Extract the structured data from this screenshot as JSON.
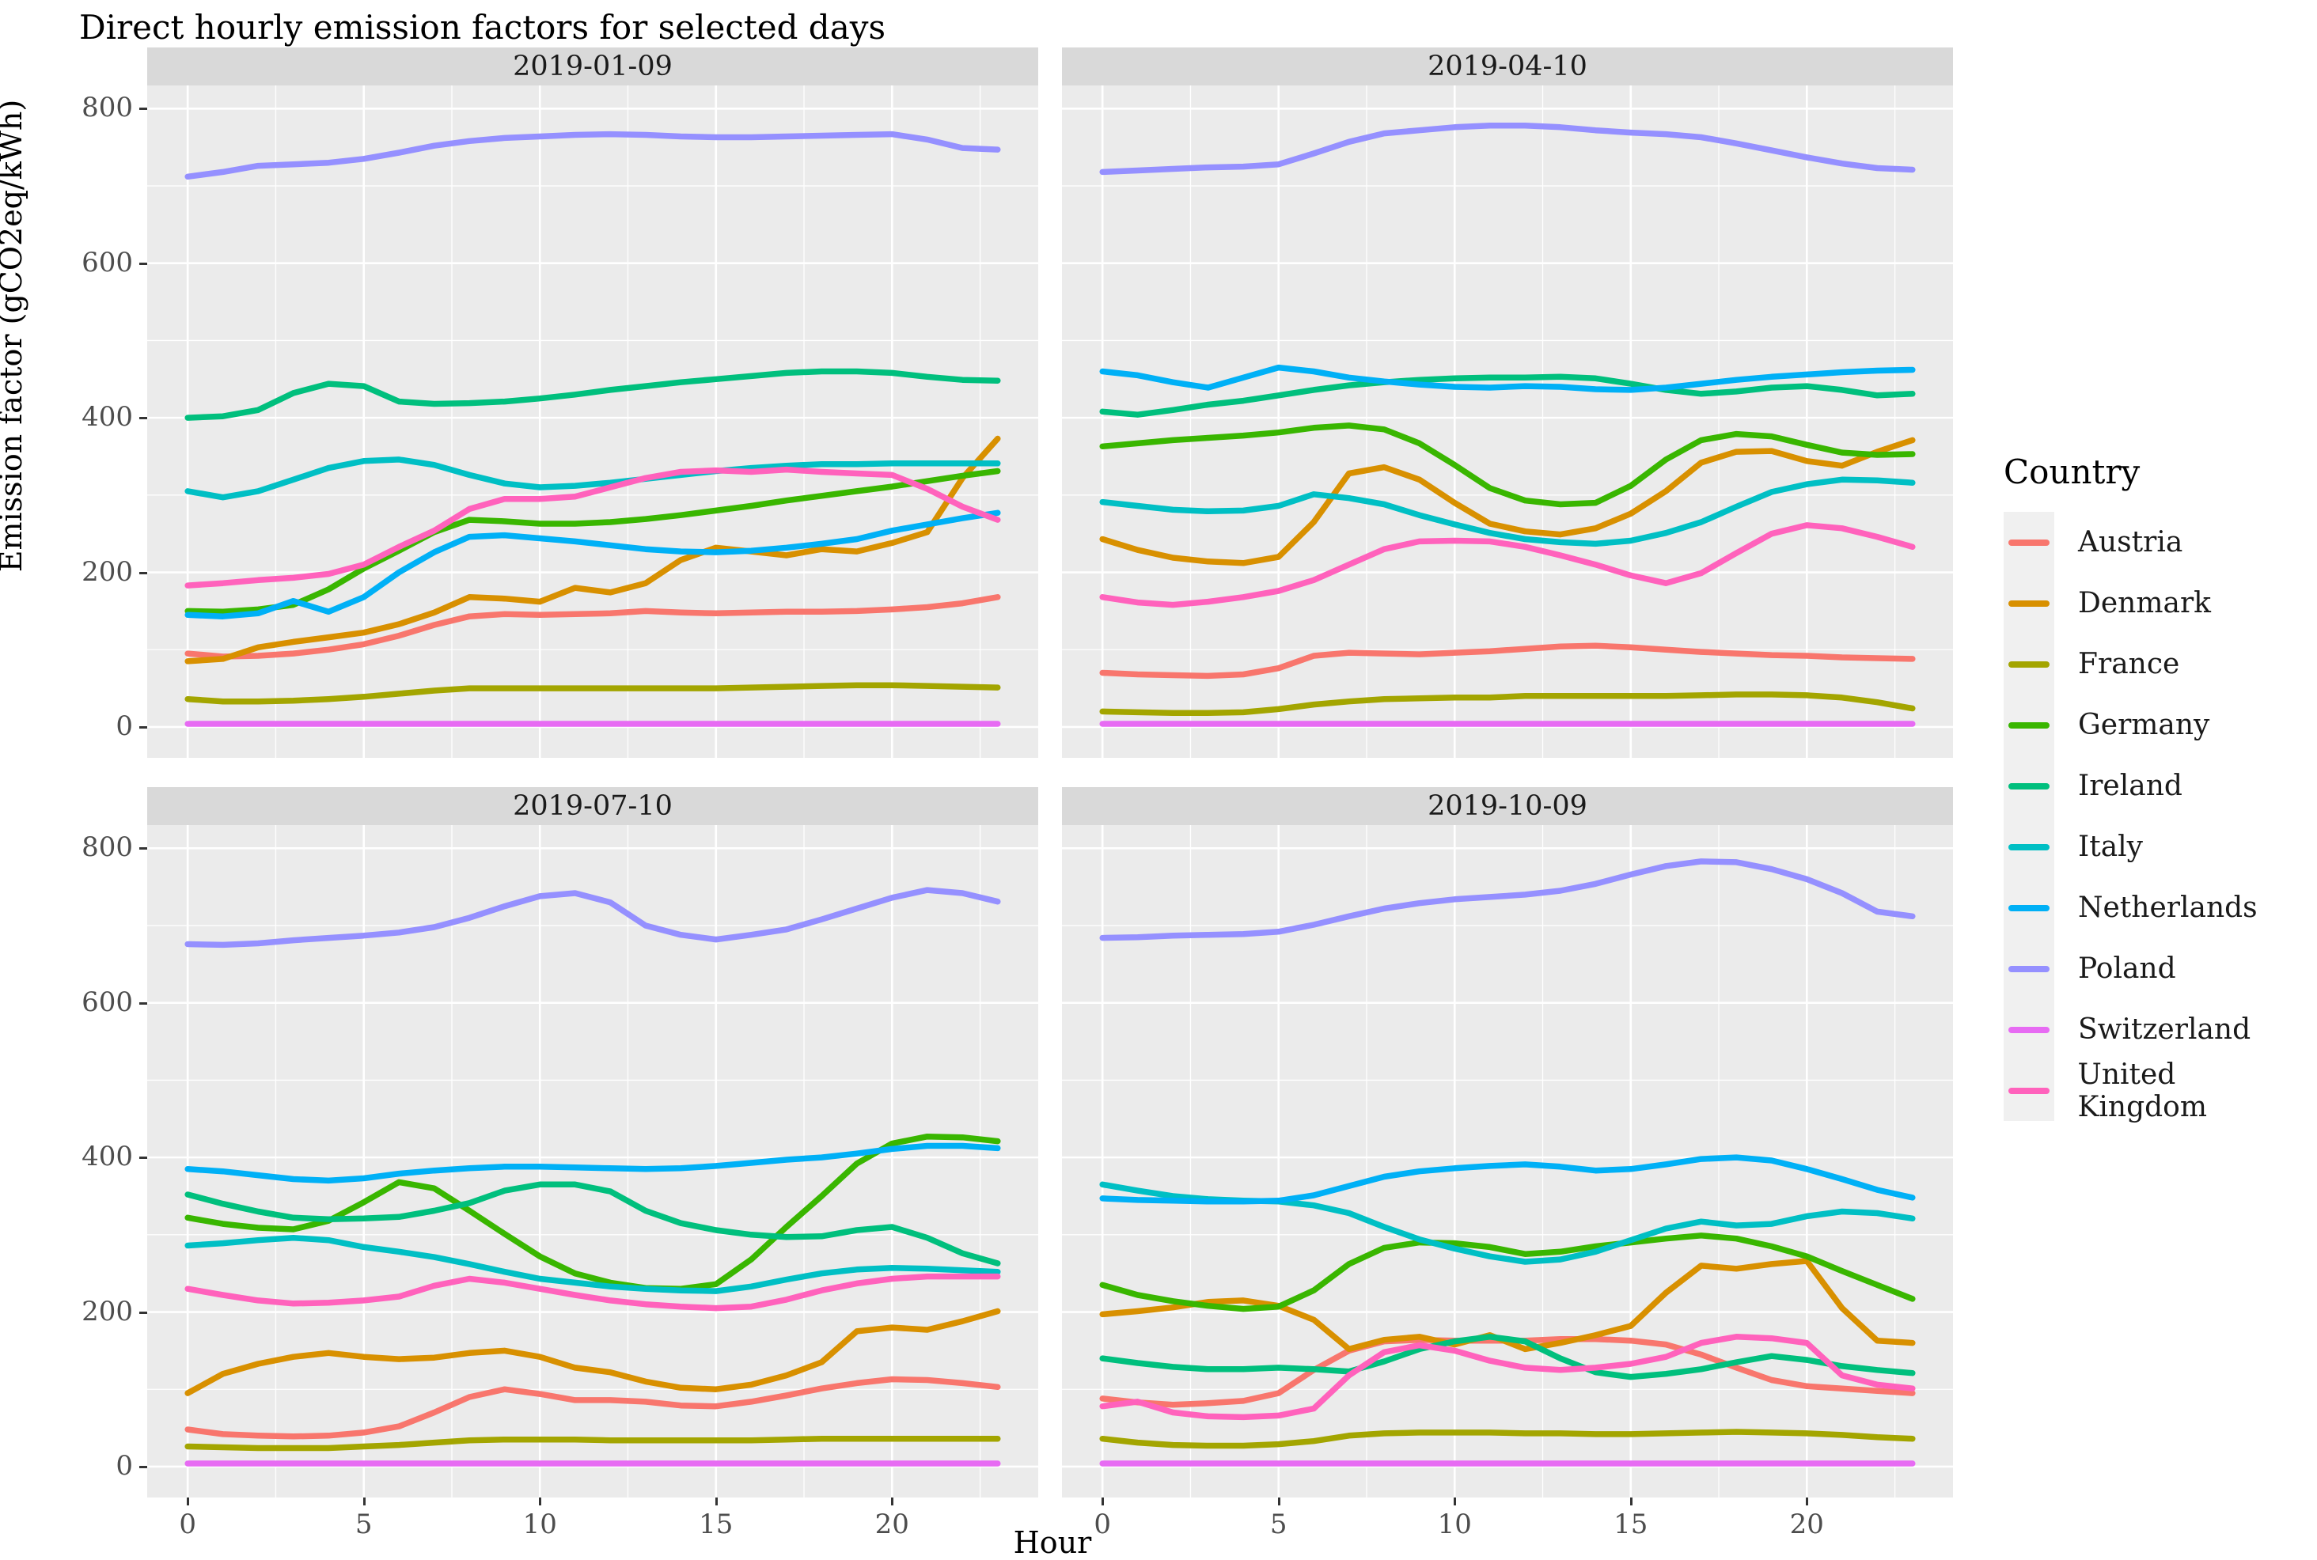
{
  "chart_data": {
    "type": "line",
    "title": "Direct hourly emission factors for selected days",
    "xlabel": "Hour",
    "ylabel": "Emission factor (gCO2eq/kWh)",
    "legend_title": "Country",
    "x_ticks": [
      0,
      5,
      10,
      15,
      20
    ],
    "y_ticks": [
      0,
      200,
      400,
      600,
      800
    ],
    "x_minor": [
      2.5,
      7.5,
      12.5,
      17.5,
      22.5
    ],
    "y_minor": [
      100,
      300,
      500,
      700
    ],
    "xlim": [
      -1.15,
      24.15
    ],
    "ylim": [
      -40,
      830
    ],
    "grid": "on",
    "legend_position": "right",
    "colors": {
      "panel_bg": "#EBEBEB",
      "strip_bg": "#D9D9D9",
      "grid": "#FFFFFF",
      "tick_text": "#4D4D4D"
    },
    "hours": [
      0,
      1,
      2,
      3,
      4,
      5,
      6,
      7,
      8,
      9,
      10,
      11,
      12,
      13,
      14,
      15,
      16,
      17,
      18,
      19,
      20,
      21,
      22,
      23
    ],
    "countries": [
      {
        "name": "Austria",
        "color": "#F8766D"
      },
      {
        "name": "Denmark",
        "color": "#D89000"
      },
      {
        "name": "France",
        "color": "#A3A500"
      },
      {
        "name": "Germany",
        "color": "#39B600"
      },
      {
        "name": "Ireland",
        "color": "#00BF7D"
      },
      {
        "name": "Italy",
        "color": "#00BFC4"
      },
      {
        "name": "Netherlands",
        "color": "#00B0F6"
      },
      {
        "name": "Poland",
        "color": "#9590FF"
      },
      {
        "name": "Switzerland",
        "color": "#E76BF3"
      },
      {
        "name": "United Kingdom",
        "color": "#FF62BC"
      }
    ],
    "facets": [
      {
        "label": "2019-01-09",
        "series": {
          "Austria": [
            95,
            91,
            92,
            95,
            100,
            107,
            118,
            132,
            143,
            146,
            145,
            146,
            147,
            150,
            148,
            147,
            148,
            149,
            149,
            150,
            152,
            155,
            160,
            168
          ],
          "Denmark": [
            85,
            88,
            103,
            110,
            116,
            122,
            133,
            148,
            168,
            166,
            162,
            180,
            174,
            186,
            216,
            232,
            227,
            222,
            230,
            227,
            238,
            252,
            322,
            373
          ],
          "France": [
            36,
            33,
            33,
            34,
            36,
            39,
            43,
            47,
            50,
            50,
            50,
            50,
            50,
            50,
            50,
            50,
            51,
            52,
            53,
            54,
            54,
            53,
            52,
            51
          ],
          "Germany": [
            150,
            149,
            152,
            158,
            178,
            205,
            228,
            252,
            268,
            266,
            263,
            263,
            265,
            269,
            274,
            280,
            286,
            293,
            299,
            305,
            311,
            318,
            325,
            331
          ],
          "Ireland": [
            400,
            402,
            410,
            432,
            444,
            441,
            421,
            418,
            419,
            421,
            425,
            430,
            436,
            441,
            446,
            450,
            454,
            458,
            460,
            460,
            458,
            453,
            449,
            448
          ],
          "Italy": [
            305,
            297,
            305,
            320,
            335,
            344,
            346,
            339,
            326,
            315,
            310,
            312,
            316,
            321,
            326,
            331,
            335,
            338,
            340,
            340,
            341,
            341,
            341,
            341
          ],
          "Netherlands": [
            145,
            143,
            147,
            163,
            149,
            168,
            200,
            226,
            246,
            248,
            244,
            240,
            235,
            230,
            227,
            226,
            228,
            232,
            237,
            243,
            254,
            262,
            270,
            277
          ],
          "Poland": [
            712,
            718,
            726,
            728,
            730,
            735,
            743,
            752,
            758,
            762,
            764,
            766,
            767,
            766,
            764,
            763,
            763,
            764,
            765,
            766,
            767,
            760,
            749,
            747
          ],
          "Switzerland": [
            4,
            4,
            4,
            4,
            4,
            4,
            4,
            4,
            4,
            4,
            4,
            4,
            4,
            4,
            4,
            4,
            4,
            4,
            4,
            4,
            4,
            4,
            4,
            4
          ],
          "United Kingdom": [
            183,
            186,
            190,
            193,
            198,
            210,
            233,
            254,
            282,
            295,
            295,
            298,
            310,
            322,
            330,
            332,
            330,
            333,
            330,
            328,
            326,
            308,
            285,
            268
          ]
        }
      },
      {
        "label": "2019-04-10",
        "series": {
          "Austria": [
            70,
            68,
            67,
            66,
            68,
            76,
            92,
            96,
            95,
            94,
            96,
            98,
            101,
            104,
            105,
            103,
            100,
            97,
            95,
            93,
            92,
            90,
            89,
            88
          ],
          "Denmark": [
            243,
            229,
            219,
            214,
            212,
            220,
            265,
            328,
            336,
            320,
            290,
            263,
            253,
            249,
            257,
            276,
            305,
            342,
            356,
            357,
            344,
            338,
            356,
            371
          ],
          "France": [
            20,
            19,
            18,
            18,
            19,
            23,
            29,
            33,
            36,
            37,
            38,
            38,
            40,
            40,
            40,
            40,
            40,
            41,
            42,
            42,
            41,
            38,
            32,
            24
          ],
          "Germany": [
            363,
            367,
            371,
            374,
            377,
            381,
            387,
            390,
            385,
            367,
            339,
            309,
            293,
            288,
            290,
            312,
            346,
            371,
            379,
            376,
            365,
            355,
            352,
            353
          ],
          "Ireland": [
            408,
            404,
            410,
            417,
            422,
            429,
            436,
            442,
            446,
            449,
            451,
            452,
            452,
            453,
            451,
            444,
            436,
            431,
            434,
            439,
            441,
            436,
            429,
            431
          ],
          "Italy": [
            291,
            286,
            281,
            279,
            280,
            286,
            301,
            296,
            288,
            274,
            262,
            251,
            243,
            239,
            237,
            241,
            251,
            265,
            285,
            304,
            314,
            320,
            319,
            316
          ],
          "Netherlands": [
            460,
            455,
            446,
            439,
            452,
            465,
            460,
            452,
            447,
            443,
            440,
            439,
            441,
            440,
            437,
            436,
            439,
            444,
            449,
            453,
            456,
            459,
            461,
            462
          ],
          "Poland": [
            718,
            720,
            722,
            724,
            725,
            728,
            742,
            757,
            768,
            772,
            776,
            778,
            778,
            776,
            772,
            769,
            767,
            763,
            755,
            746,
            737,
            729,
            723,
            721
          ],
          "Switzerland": [
            4,
            4,
            4,
            4,
            4,
            4,
            4,
            4,
            4,
            4,
            4,
            4,
            4,
            4,
            4,
            4,
            4,
            4,
            4,
            4,
            4,
            4,
            4,
            4
          ],
          "United Kingdom": [
            168,
            161,
            158,
            162,
            168,
            176,
            190,
            210,
            230,
            240,
            241,
            240,
            233,
            222,
            210,
            196,
            186,
            199,
            225,
            250,
            261,
            257,
            246,
            233
          ]
        }
      },
      {
        "label": "2019-07-10",
        "series": {
          "Austria": [
            48,
            42,
            40,
            39,
            40,
            44,
            52,
            70,
            90,
            100,
            94,
            86,
            86,
            84,
            79,
            78,
            84,
            92,
            101,
            108,
            113,
            112,
            108,
            103
          ],
          "Denmark": [
            95,
            120,
            133,
            142,
            147,
            142,
            139,
            141,
            147,
            150,
            142,
            128,
            122,
            110,
            102,
            100,
            106,
            118,
            135,
            175,
            180,
            177,
            188,
            201
          ],
          "France": [
            26,
            25,
            24,
            24,
            24,
            26,
            28,
            31,
            34,
            35,
            35,
            35,
            34,
            34,
            34,
            34,
            34,
            35,
            36,
            36,
            36,
            36,
            36,
            36
          ],
          "Germany": [
            322,
            314,
            309,
            307,
            318,
            342,
            368,
            360,
            331,
            301,
            272,
            250,
            238,
            231,
            230,
            236,
            268,
            310,
            350,
            392,
            418,
            427,
            426,
            421
          ],
          "Ireland": [
            352,
            340,
            330,
            322,
            320,
            321,
            323,
            331,
            341,
            357,
            365,
            365,
            356,
            331,
            315,
            306,
            300,
            297,
            298,
            306,
            310,
            296,
            276,
            263
          ],
          "Italy": [
            286,
            289,
            293,
            296,
            293,
            284,
            278,
            271,
            262,
            252,
            243,
            238,
            233,
            230,
            228,
            227,
            233,
            242,
            250,
            255,
            257,
            256,
            254,
            252
          ],
          "Netherlands": [
            385,
            382,
            377,
            372,
            370,
            373,
            379,
            383,
            386,
            388,
            388,
            387,
            386,
            385,
            386,
            389,
            393,
            397,
            400,
            405,
            411,
            415,
            415,
            412
          ],
          "Poland": [
            676,
            675,
            677,
            681,
            684,
            687,
            691,
            698,
            710,
            725,
            738,
            742,
            730,
            700,
            688,
            682,
            688,
            695,
            708,
            722,
            736,
            746,
            742,
            731
          ],
          "Switzerland": [
            4,
            4,
            4,
            4,
            4,
            4,
            4,
            4,
            4,
            4,
            4,
            4,
            4,
            4,
            4,
            4,
            4,
            4,
            4,
            4,
            4,
            4,
            4,
            4
          ],
          "United Kingdom": [
            230,
            222,
            215,
            211,
            212,
            215,
            220,
            234,
            243,
            238,
            230,
            222,
            215,
            210,
            207,
            205,
            207,
            216,
            228,
            237,
            243,
            246,
            246,
            246
          ]
        }
      },
      {
        "label": "2019-10-09",
        "series": {
          "Austria": [
            88,
            83,
            80,
            82,
            85,
            95,
            125,
            150,
            162,
            164,
            163,
            163,
            163,
            165,
            165,
            163,
            158,
            145,
            128,
            112,
            104,
            101,
            98,
            95
          ],
          "Denmark": [
            197,
            201,
            206,
            213,
            215,
            208,
            190,
            152,
            164,
            168,
            158,
            170,
            152,
            160,
            170,
            182,
            225,
            260,
            256,
            262,
            266,
            205,
            163,
            160
          ],
          "France": [
            36,
            31,
            28,
            27,
            27,
            29,
            33,
            40,
            43,
            44,
            44,
            44,
            43,
            43,
            42,
            42,
            43,
            44,
            45,
            44,
            43,
            41,
            38,
            36
          ],
          "Germany": [
            235,
            222,
            214,
            208,
            204,
            207,
            228,
            262,
            283,
            290,
            289,
            284,
            275,
            278,
            285,
            290,
            295,
            299,
            295,
            285,
            272,
            253,
            235,
            217
          ],
          "Ireland": [
            140,
            134,
            129,
            126,
            126,
            128,
            126,
            123,
            136,
            152,
            162,
            168,
            162,
            140,
            122,
            116,
            120,
            126,
            135,
            143,
            138,
            130,
            125,
            121
          ],
          "Italy": [
            365,
            357,
            350,
            346,
            344,
            343,
            338,
            328,
            310,
            294,
            282,
            272,
            265,
            268,
            278,
            293,
            308,
            317,
            312,
            314,
            324,
            330,
            328,
            321
          ],
          "Netherlands": [
            347,
            345,
            344,
            343,
            343,
            344,
            351,
            363,
            375,
            382,
            386,
            389,
            391,
            388,
            383,
            385,
            391,
            398,
            400,
            396,
            385,
            372,
            358,
            348
          ],
          "Poland": [
            684,
            685,
            687,
            688,
            689,
            692,
            701,
            712,
            722,
            729,
            734,
            737,
            740,
            745,
            754,
            766,
            777,
            783,
            782,
            773,
            760,
            742,
            718,
            712
          ],
          "Switzerland": [
            4,
            4,
            4,
            4,
            4,
            4,
            4,
            4,
            4,
            4,
            4,
            4,
            4,
            4,
            4,
            4,
            4,
            4,
            4,
            4,
            4,
            4,
            4,
            4
          ],
          "United Kingdom": [
            78,
            84,
            70,
            65,
            64,
            66,
            75,
            118,
            148,
            157,
            150,
            137,
            128,
            125,
            128,
            133,
            142,
            160,
            168,
            166,
            160,
            118,
            106,
            101
          ]
        }
      }
    ]
  }
}
